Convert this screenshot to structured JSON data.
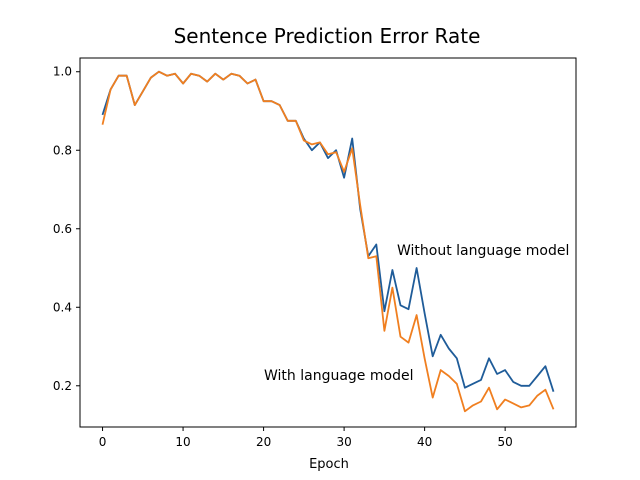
{
  "chart_data": {
    "type": "line",
    "title": "Sentence Prediction Error Rate",
    "xlabel": "Epoch",
    "ylabel": "",
    "xlim": [
      -2.8,
      58.8
    ],
    "ylim": [
      0.095,
      1.035
    ],
    "xticks": [
      0,
      10,
      20,
      30,
      40,
      50
    ],
    "yticks": [
      0.2,
      0.4,
      0.6,
      0.8,
      1.0
    ],
    "ytick_labels": [
      "0.2",
      "0.4",
      "0.6",
      "0.8",
      "1.0"
    ],
    "grid": false,
    "legend": "none",
    "x": [
      0,
      1,
      2,
      3,
      4,
      5,
      6,
      7,
      8,
      9,
      10,
      11,
      12,
      13,
      14,
      15,
      16,
      17,
      18,
      19,
      20,
      21,
      22,
      23,
      24,
      25,
      26,
      27,
      28,
      29,
      30,
      31,
      32,
      33,
      34,
      35,
      36,
      37,
      38,
      39,
      40,
      41,
      42,
      43,
      44,
      45,
      46,
      47,
      48,
      49,
      50,
      51,
      52,
      53,
      54,
      55,
      56
    ],
    "series": [
      {
        "name": "Without language model",
        "color": "#1f5c99",
        "values": [
          0.89,
          0.955,
          0.99,
          0.99,
          0.915,
          0.95,
          0.985,
          1.0,
          0.99,
          0.995,
          0.97,
          0.995,
          0.99,
          0.975,
          0.995,
          0.98,
          0.995,
          0.99,
          0.97,
          0.98,
          0.925,
          0.925,
          0.915,
          0.875,
          0.875,
          0.83,
          0.8,
          0.82,
          0.78,
          0.8,
          0.73,
          0.83,
          0.65,
          0.53,
          0.56,
          0.39,
          0.495,
          0.405,
          0.395,
          0.5,
          0.385,
          0.275,
          0.33,
          0.295,
          0.27,
          0.195,
          0.205,
          0.215,
          0.27,
          0.23,
          0.24,
          0.21,
          0.2,
          0.2,
          0.225,
          0.25,
          0.185
        ]
      },
      {
        "name": "With language model",
        "color": "#f07f20",
        "values": [
          0.865,
          0.955,
          0.99,
          0.99,
          0.915,
          0.95,
          0.985,
          1.0,
          0.99,
          0.995,
          0.97,
          0.995,
          0.99,
          0.975,
          0.995,
          0.98,
          0.995,
          0.99,
          0.97,
          0.98,
          0.925,
          0.925,
          0.915,
          0.875,
          0.875,
          0.825,
          0.815,
          0.82,
          0.79,
          0.795,
          0.745,
          0.805,
          0.66,
          0.525,
          0.53,
          0.34,
          0.45,
          0.325,
          0.31,
          0.38,
          0.27,
          0.17,
          0.24,
          0.225,
          0.205,
          0.135,
          0.15,
          0.16,
          0.195,
          0.14,
          0.165,
          0.155,
          0.145,
          0.15,
          0.175,
          0.19,
          0.14
        ]
      }
    ],
    "annotations": [
      {
        "text": "Without language model",
        "color": "#1f5c99"
      },
      {
        "text": "With language model",
        "color": "#f07f20"
      }
    ]
  }
}
